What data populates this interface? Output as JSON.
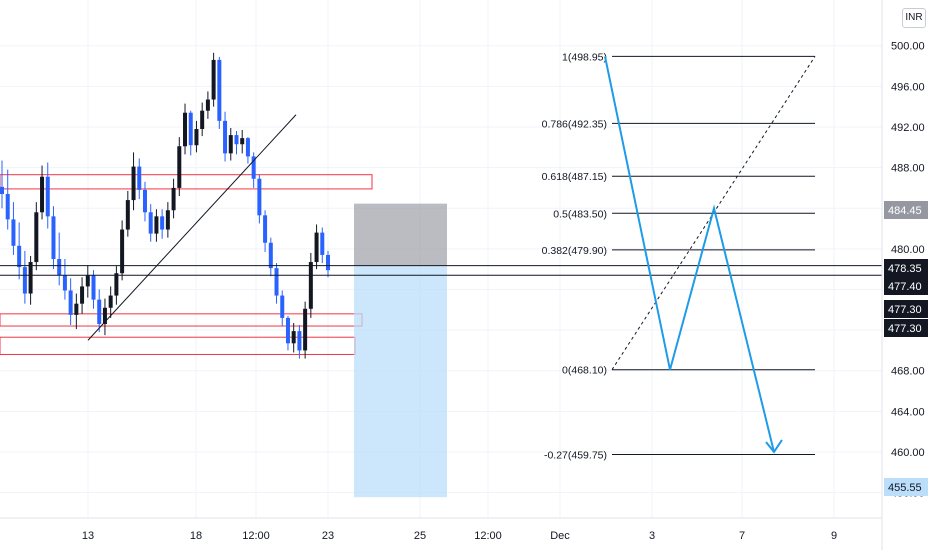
{
  "currency": "INR",
  "colors": {
    "up": "#131722",
    "down": "#2962ff",
    "zone_border": "#f23645",
    "fib_line": "#131722",
    "projection": "#1e9be9",
    "stop_zone": "#9598a1",
    "target_zone": "#bbdefb",
    "grid": "#f0f3fa"
  },
  "chart_data": {
    "type": "candlestick",
    "y_axis": {
      "ticks": [
        "500.00",
        "496.00",
        "492.00",
        "488.00",
        "484.00",
        "480.00",
        "476.00",
        "472.00",
        "468.00",
        "464.00",
        "460.00",
        "456.00"
      ],
      "range": [
        453.5,
        504.5
      ]
    },
    "x_axis": {
      "ticks": [
        "13",
        "18",
        "12:00",
        "23",
        "25",
        "12:00",
        "Dec",
        "3",
        "7",
        "9"
      ]
    },
    "price_labels": [
      {
        "value": "484.45",
        "style": "gray"
      },
      {
        "value": "478.35",
        "style": "dark"
      },
      {
        "value": "477.40",
        "style": "dark"
      },
      {
        "value": "477.30",
        "style": "dark"
      },
      {
        "value": "477.30",
        "style": "dark"
      },
      {
        "value": "455.55",
        "style": "blue"
      }
    ],
    "horizontal_lines": [
      478.35,
      477.4
    ],
    "fib_levels": [
      {
        "label": "1(498.95)",
        "price": 498.95
      },
      {
        "label": "0.786(492.35)",
        "price": 492.35
      },
      {
        "label": "0.618(487.15)",
        "price": 487.15
      },
      {
        "label": "0.5(483.50)",
        "price": 483.5
      },
      {
        "label": "0.382(479.90)",
        "price": 479.9
      },
      {
        "label": "0(468.10)",
        "price": 468.1
      },
      {
        "label": "-0.27(459.75)",
        "price": 459.75
      }
    ],
    "zones": [
      {
        "top": 487.3,
        "bottom": 485.9
      },
      {
        "top": 473.6,
        "bottom": 472.4
      },
      {
        "top": 471.3,
        "bottom": 469.6
      }
    ],
    "position": {
      "stop_top": 484.45,
      "entry": 478.35,
      "target": 455.55
    },
    "trendline": [
      471.0,
      493.2
    ],
    "projection_path": [
      498.95,
      468.1,
      484.0,
      460.0
    ],
    "candles": [
      {
        "o": 486.1,
        "h": 488.7,
        "l": 484.0,
        "c": 485.4
      },
      {
        "o": 485.4,
        "h": 487.8,
        "l": 481.9,
        "c": 482.9
      },
      {
        "o": 482.9,
        "h": 484.6,
        "l": 479.4,
        "c": 480.3
      },
      {
        "o": 480.3,
        "h": 482.6,
        "l": 477.0,
        "c": 478.2
      },
      {
        "o": 478.2,
        "h": 479.8,
        "l": 474.6,
        "c": 475.6
      },
      {
        "o": 475.6,
        "h": 479.3,
        "l": 474.5,
        "c": 478.7
      },
      {
        "o": 478.7,
        "h": 484.6,
        "l": 477.9,
        "c": 483.6
      },
      {
        "o": 483.6,
        "h": 488.2,
        "l": 482.9,
        "c": 487.1
      },
      {
        "o": 487.1,
        "h": 488.5,
        "l": 482.0,
        "c": 483.2
      },
      {
        "o": 483.2,
        "h": 484.2,
        "l": 478.0,
        "c": 479.0
      },
      {
        "o": 479.0,
        "h": 481.6,
        "l": 476.4,
        "c": 477.4
      },
      {
        "o": 477.4,
        "h": 479.0,
        "l": 475.0,
        "c": 475.9
      },
      {
        "o": 475.9,
        "h": 477.1,
        "l": 472.5,
        "c": 473.5
      },
      {
        "o": 473.5,
        "h": 475.6,
        "l": 472.1,
        "c": 474.6
      },
      {
        "o": 474.6,
        "h": 477.2,
        "l": 473.6,
        "c": 476.3
      },
      {
        "o": 476.3,
        "h": 478.4,
        "l": 475.2,
        "c": 477.4
      },
      {
        "o": 477.4,
        "h": 477.9,
        "l": 474.1,
        "c": 475.0
      },
      {
        "o": 475.0,
        "h": 476.0,
        "l": 471.8,
        "c": 472.6
      },
      {
        "o": 472.6,
        "h": 475.1,
        "l": 471.5,
        "c": 474.2
      },
      {
        "o": 474.2,
        "h": 476.3,
        "l": 473.2,
        "c": 475.4
      },
      {
        "o": 475.4,
        "h": 478.3,
        "l": 474.5,
        "c": 477.6
      },
      {
        "o": 477.6,
        "h": 482.8,
        "l": 476.9,
        "c": 481.9
      },
      {
        "o": 481.9,
        "h": 485.7,
        "l": 481.2,
        "c": 484.8
      },
      {
        "o": 484.8,
        "h": 489.5,
        "l": 483.8,
        "c": 488.1
      },
      {
        "o": 488.1,
        "h": 488.9,
        "l": 484.9,
        "c": 485.8
      },
      {
        "o": 485.8,
        "h": 486.6,
        "l": 482.7,
        "c": 483.6
      },
      {
        "o": 483.6,
        "h": 484.4,
        "l": 480.7,
        "c": 481.5
      },
      {
        "o": 481.5,
        "h": 483.9,
        "l": 480.7,
        "c": 483.2
      },
      {
        "o": 483.2,
        "h": 483.9,
        "l": 481.0,
        "c": 481.9
      },
      {
        "o": 481.9,
        "h": 484.6,
        "l": 481.1,
        "c": 483.8
      },
      {
        "o": 483.8,
        "h": 486.9,
        "l": 483.0,
        "c": 486.0
      },
      {
        "o": 486.0,
        "h": 491.0,
        "l": 485.2,
        "c": 490.1
      },
      {
        "o": 490.1,
        "h": 494.3,
        "l": 489.3,
        "c": 493.4
      },
      {
        "o": 493.4,
        "h": 493.6,
        "l": 489.2,
        "c": 490.2
      },
      {
        "o": 490.2,
        "h": 492.6,
        "l": 489.5,
        "c": 491.8
      },
      {
        "o": 491.8,
        "h": 494.4,
        "l": 491.1,
        "c": 493.6
      },
      {
        "o": 493.6,
        "h": 495.5,
        "l": 492.8,
        "c": 494.7
      },
      {
        "o": 494.7,
        "h": 499.3,
        "l": 494.0,
        "c": 498.6
      },
      {
        "o": 498.6,
        "h": 498.9,
        "l": 491.8,
        "c": 492.6
      },
      {
        "o": 492.6,
        "h": 493.5,
        "l": 488.6,
        "c": 489.4
      },
      {
        "o": 489.4,
        "h": 491.9,
        "l": 488.7,
        "c": 491.2
      },
      {
        "o": 491.2,
        "h": 491.6,
        "l": 489.3,
        "c": 490.3
      },
      {
        "o": 490.3,
        "h": 491.7,
        "l": 489.4,
        "c": 490.9
      },
      {
        "o": 490.9,
        "h": 491.0,
        "l": 488.4,
        "c": 489.1
      },
      {
        "o": 489.1,
        "h": 489.5,
        "l": 486.0,
        "c": 486.9
      },
      {
        "o": 486.9,
        "h": 487.3,
        "l": 482.5,
        "c": 483.3
      },
      {
        "o": 483.3,
        "h": 483.8,
        "l": 479.7,
        "c": 480.6
      },
      {
        "o": 480.6,
        "h": 481.1,
        "l": 477.3,
        "c": 478.1
      },
      {
        "o": 478.1,
        "h": 478.6,
        "l": 474.6,
        "c": 475.4
      },
      {
        "o": 475.4,
        "h": 475.9,
        "l": 472.4,
        "c": 473.2
      },
      {
        "o": 473.2,
        "h": 473.4,
        "l": 470.0,
        "c": 470.7
      },
      {
        "o": 470.7,
        "h": 472.7,
        "l": 469.8,
        "c": 471.9
      },
      {
        "o": 471.9,
        "h": 472.5,
        "l": 469.2,
        "c": 470.0
      },
      {
        "o": 470.0,
        "h": 474.8,
        "l": 469.2,
        "c": 474.1
      },
      {
        "o": 474.1,
        "h": 479.6,
        "l": 473.2,
        "c": 478.7
      },
      {
        "o": 478.7,
        "h": 482.4,
        "l": 478.0,
        "c": 481.6
      },
      {
        "o": 481.6,
        "h": 482.1,
        "l": 478.6,
        "c": 479.4
      },
      {
        "o": 479.4,
        "h": 479.8,
        "l": 477.2,
        "c": 477.9
      }
    ]
  }
}
